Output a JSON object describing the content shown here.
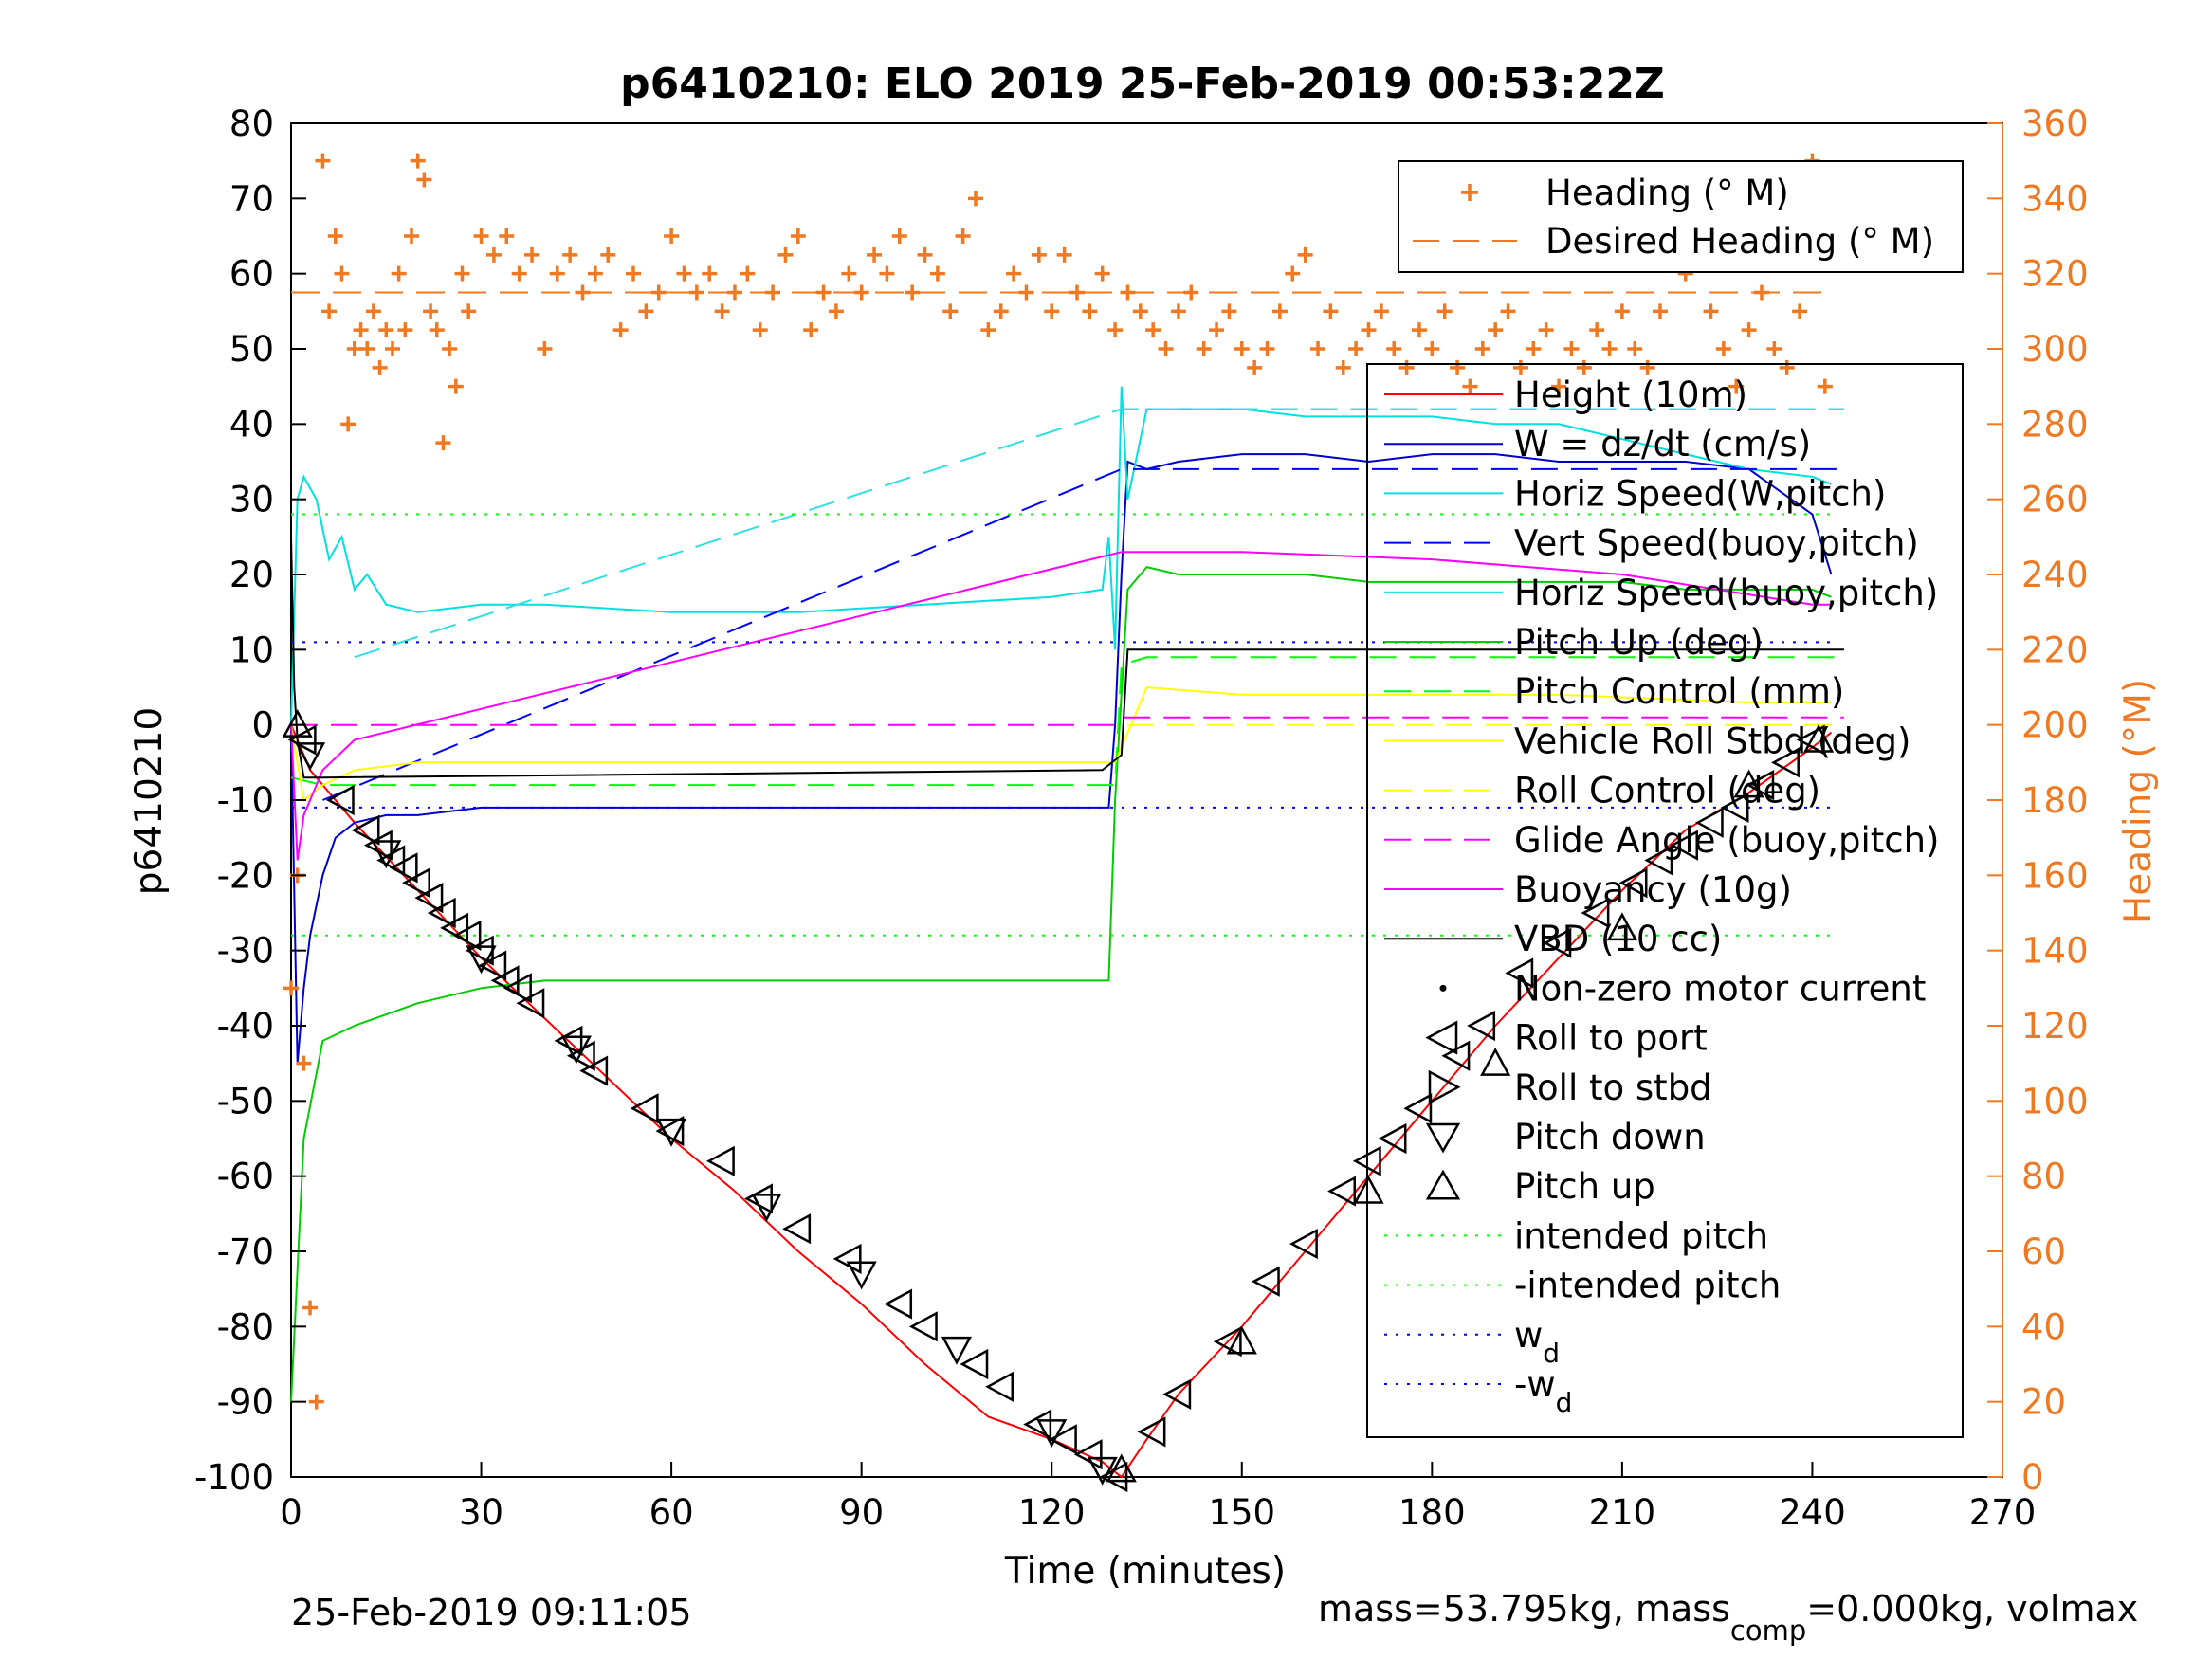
{
  "title": "p6410210: ELO 2019 25-Feb-2019 00:53:22Z",
  "footer_left": "25-Feb-2019 09:11:05",
  "footer_right_parts": [
    "mass=53.795kg, mass",
    "comp",
    "=0.000kg, volmax"
  ],
  "colors": {
    "heading": "#F07820",
    "height": "#FF0000",
    "w": "#0000CC",
    "horiz_w": "#00E0E0",
    "vert_buoy": "#0000FF",
    "horiz_buoy": "#30E0E0",
    "pitch": "#00CC00",
    "pitch_ctrl": "#00FF00",
    "roll": "#FFFF00",
    "glide": "#FF00FF",
    "buoy": "#FF00FF",
    "vbd": "#000000",
    "intended": "#00FF00",
    "wd": "#0000FF"
  },
  "chart_data": {
    "type": "line",
    "title": "p6410210: ELO 2019 25-Feb-2019 00:53:22Z",
    "xlabel": "Time (minutes)",
    "ylabel": "p6410210",
    "y2label": "Heading (°M)",
    "xlim": [
      0,
      270
    ],
    "ylim": [
      -100,
      80
    ],
    "y2lim": [
      0,
      360
    ],
    "xticks": [
      0,
      30,
      60,
      90,
      120,
      150,
      180,
      210,
      240,
      270
    ],
    "yticks": [
      -100,
      -90,
      -80,
      -70,
      -60,
      -50,
      -40,
      -30,
      -20,
      -10,
      0,
      10,
      20,
      30,
      40,
      50,
      60,
      70,
      80
    ],
    "y2ticks": [
      0,
      20,
      40,
      60,
      80,
      100,
      120,
      140,
      160,
      180,
      200,
      220,
      240,
      260,
      280,
      300,
      320,
      340,
      360
    ],
    "legend_top": {
      "placement": "top-right",
      "entries": [
        "Heading (° M)",
        "Desired Heading (° M)"
      ]
    },
    "legend_main": {
      "placement": "right",
      "entries": [
        "Height (10m)",
        "W = dz/dt (cm/s)",
        "Horiz Speed(W,pitch)",
        "Vert Speed(buoy,pitch)",
        "Horiz Speed(buoy,pitch)",
        "Pitch Up (deg)",
        "Pitch Control (mm)",
        "Vehicle Roll Stbd (deg)",
        "Roll Control (deg)",
        "Glide Angle (buoy,pitch)",
        "Buoyancy (10g)",
        "VBD (10 cc)",
        "Non-zero motor current",
        "Roll to port",
        "Roll to stbd",
        "Pitch down",
        "Pitch up",
        "intended pitch",
        "-intended pitch",
        "w",
        "-w"
      ],
      "subscript": "d"
    },
    "series": [
      {
        "name": "Height (10m)",
        "style": "solid",
        "x": [
          0,
          1,
          3,
          10,
          20,
          30,
          40,
          50,
          60,
          70,
          80,
          90,
          100,
          110,
          120,
          128,
          131,
          135,
          140,
          150,
          160,
          170,
          180,
          190,
          200,
          210,
          220,
          230,
          240,
          243
        ],
        "y": [
          0,
          -2,
          -6,
          -13,
          -22,
          -31,
          -39,
          -47,
          -55,
          -62,
          -70,
          -77,
          -85,
          -92,
          -95,
          -98,
          -100,
          -95,
          -89,
          -80,
          -70,
          -60,
          -50,
          -40,
          -31,
          -22,
          -14,
          -9,
          -3,
          -1
        ]
      },
      {
        "name": "W = dz/dt (cm/s)",
        "style": "solid",
        "x": [
          0,
          1,
          2,
          3,
          5,
          7,
          10,
          15,
          20,
          30,
          40,
          60,
          80,
          100,
          120,
          128,
          129,
          130,
          131,
          132,
          135,
          140,
          150,
          160,
          170,
          180,
          190,
          200,
          210,
          220,
          230,
          240,
          243
        ],
        "y": [
          0,
          -45,
          -35,
          -28,
          -20,
          -15,
          -13,
          -12,
          -12,
          -11,
          -11,
          -11,
          -11,
          -11,
          -11,
          -11,
          -11,
          0,
          20,
          35,
          34,
          35,
          36,
          36,
          35,
          36,
          36,
          35,
          35,
          35,
          34,
          28,
          20
        ]
      },
      {
        "name": "Horiz Speed(W,pitch)",
        "style": "solid",
        "x": [
          0,
          1,
          2,
          4,
          6,
          8,
          10,
          12,
          15,
          20,
          30,
          40,
          60,
          80,
          100,
          120,
          128,
          129,
          130,
          131,
          132,
          135,
          140,
          150,
          160,
          170,
          180,
          190,
          200,
          210,
          220,
          230,
          240,
          243
        ],
        "y": [
          0,
          30,
          33,
          30,
          22,
          25,
          18,
          20,
          16,
          15,
          16,
          16,
          15,
          15,
          16,
          17,
          18,
          25,
          10,
          45,
          30,
          42,
          42,
          42,
          41,
          41,
          41,
          40,
          40,
          38,
          36,
          34,
          33,
          32
        ]
      },
      {
        "name": "Vert Speed(buoy,pitch)",
        "style": "dash",
        "x": [
          5,
          131,
          135,
          245
        ],
        "y": [
          -10,
          34,
          34,
          34
        ]
      },
      {
        "name": "Horiz Speed(buoy,pitch)",
        "style": "dash",
        "x": [
          10,
          131,
          245
        ],
        "y": [
          9,
          42,
          42
        ]
      },
      {
        "name": "Pitch Up (deg)",
        "style": "solid",
        "x": [
          0,
          2,
          5,
          10,
          20,
          30,
          40,
          60,
          80,
          100,
          120,
          128,
          129,
          130,
          132,
          135,
          140,
          150,
          160,
          170,
          180,
          190,
          200,
          210,
          220,
          230,
          240,
          243
        ],
        "y": [
          -90,
          -55,
          -42,
          -40,
          -37,
          -35,
          -34,
          -34,
          -34,
          -34,
          -34,
          -34,
          -34,
          -10,
          18,
          21,
          20,
          20,
          20,
          19,
          19,
          19,
          19,
          19,
          18,
          18,
          18,
          17
        ]
      },
      {
        "name": "Pitch Control (mm)",
        "style": "dash",
        "x": [
          0,
          5,
          130,
          131,
          135,
          245
        ],
        "y": [
          -7,
          -8,
          -8,
          8,
          9,
          9
        ]
      },
      {
        "name": "Vehicle Roll Stbd (deg)",
        "style": "solid",
        "x": [
          0,
          2,
          5,
          10,
          20,
          40,
          60,
          80,
          100,
          120,
          130,
          135,
          150,
          170,
          200,
          230,
          243
        ],
        "y": [
          0,
          -10,
          -8,
          -6,
          -5,
          -5,
          -5,
          -5,
          -5,
          -5,
          -5,
          5,
          4,
          4,
          4,
          3,
          3
        ]
      },
      {
        "name": "Roll Control (deg)",
        "style": "dash",
        "x": [
          0,
          243
        ],
        "y": [
          0,
          0
        ]
      },
      {
        "name": "Glide Angle (buoy,pitch)",
        "style": "dash",
        "x": [
          0,
          130,
          131,
          245
        ],
        "y": [
          0,
          0,
          1,
          1
        ]
      },
      {
        "name": "Buoyancy (10g)",
        "style": "solid",
        "x": [
          0,
          1,
          2,
          5,
          10,
          131,
          135,
          150,
          180,
          210,
          240,
          243
        ],
        "y": [
          0,
          -18,
          -12,
          -6,
          -2,
          23,
          23,
          23,
          22,
          20,
          16,
          16
        ]
      },
      {
        "name": "VBD (10 cc)",
        "style": "solid",
        "x": [
          0,
          0.5,
          1,
          2,
          5,
          128,
          131,
          132,
          135,
          245
        ],
        "y": [
          25,
          5,
          -2,
          -7,
          -7,
          -6,
          -4,
          10,
          10,
          10
        ]
      },
      {
        "name": "intended pitch",
        "style": "dot",
        "x": [
          0,
          243
        ],
        "y": [
          28,
          28
        ]
      },
      {
        "name": "-intended pitch",
        "style": "dot",
        "x": [
          0,
          243
        ],
        "y": [
          -28,
          -28
        ]
      },
      {
        "name": "w",
        "style": "dot",
        "x": [
          0,
          243
        ],
        "y": [
          11,
          11
        ]
      },
      {
        "name": "-w",
        "style": "dot",
        "x": [
          0,
          243
        ],
        "y": [
          -11,
          -11
        ]
      }
    ],
    "desired_heading": 315,
    "desired_heading_x": [
      0,
      243
    ],
    "heading": {
      "name": "Heading (° M)",
      "x": [
        0,
        1,
        2,
        3,
        4,
        5,
        6,
        7,
        8,
        9,
        10,
        11,
        12,
        13,
        14,
        15,
        16,
        17,
        18,
        19,
        20,
        21,
        22,
        23,
        24,
        25,
        26,
        27,
        28,
        30,
        32,
        34,
        36,
        38,
        40,
        42,
        44,
        46,
        48,
        50,
        52,
        54,
        56,
        58,
        60,
        62,
        64,
        66,
        68,
        70,
        72,
        74,
        76,
        78,
        80,
        82,
        84,
        86,
        88,
        90,
        92,
        94,
        96,
        98,
        100,
        102,
        104,
        106,
        108,
        110,
        112,
        114,
        116,
        118,
        120,
        122,
        124,
        126,
        128,
        130,
        132,
        134,
        136,
        138,
        140,
        142,
        144,
        146,
        148,
        150,
        152,
        154,
        156,
        158,
        160,
        162,
        164,
        166,
        168,
        170,
        172,
        174,
        176,
        178,
        180,
        182,
        184,
        186,
        188,
        190,
        192,
        194,
        196,
        198,
        200,
        202,
        204,
        206,
        208,
        210,
        212,
        214,
        216,
        218,
        220,
        222,
        224,
        226,
        228,
        230,
        232,
        234,
        236,
        238,
        240,
        242
      ],
      "y": [
        130,
        160,
        110,
        45,
        20,
        350,
        310,
        330,
        320,
        280,
        300,
        305,
        300,
        310,
        295,
        305,
        300,
        320,
        305,
        330,
        350,
        345,
        310,
        305,
        275,
        300,
        290,
        320,
        310,
        330,
        325,
        330,
        320,
        325,
        300,
        320,
        325,
        315,
        320,
        325,
        305,
        320,
        310,
        315,
        330,
        320,
        315,
        320,
        310,
        315,
        320,
        305,
        315,
        325,
        330,
        305,
        315,
        310,
        320,
        315,
        325,
        320,
        330,
        315,
        325,
        320,
        310,
        330,
        340,
        305,
        310,
        320,
        315,
        325,
        310,
        325,
        315,
        310,
        320,
        305,
        315,
        310,
        305,
        300,
        310,
        315,
        300,
        305,
        310,
        300,
        295,
        300,
        310,
        320,
        325,
        300,
        310,
        295,
        300,
        305,
        310,
        300,
        295,
        305,
        300,
        310,
        295,
        290,
        300,
        305,
        310,
        295,
        300,
        305,
        290,
        300,
        295,
        305,
        300,
        310,
        300,
        295,
        310,
        330,
        320,
        335,
        310,
        300,
        290,
        305,
        315,
        300,
        295,
        310,
        350,
        290
      ]
    },
    "markers": {
      "roll_to_port_x": [
        2,
        8,
        12,
        14,
        16,
        18,
        20,
        22,
        24,
        26,
        28,
        30,
        32,
        34,
        36,
        38,
        44,
        46,
        48,
        56,
        60,
        68,
        74,
        80,
        88,
        96,
        100,
        108,
        112,
        118,
        122,
        126,
        130,
        136,
        140,
        148,
        154,
        160,
        166,
        170,
        174,
        178,
        184,
        188,
        194,
        200,
        206,
        212,
        216,
        220,
        224,
        228,
        232,
        236,
        240
      ],
      "roll_to_port_y": [
        -2,
        -10,
        -14,
        -16,
        -18,
        -19,
        -21,
        -23,
        -25,
        -27,
        -28,
        -30,
        -32,
        -34,
        -35,
        -37,
        -42,
        -44,
        -46,
        -51,
        -54,
        -58,
        -63,
        -67,
        -71,
        -77,
        -80,
        -85,
        -88,
        -93,
        -95,
        -97,
        -100,
        -94,
        -89,
        -82,
        -74,
        -69,
        -62,
        -58,
        -55,
        -51,
        -44,
        -40,
        -33,
        -29,
        -25,
        -21,
        -18,
        -16,
        -13,
        -11,
        -8,
        -5,
        -2
      ],
      "pitch_down_x": [
        3,
        15,
        30,
        45,
        60,
        75,
        90,
        105,
        120,
        128
      ],
      "pitch_down_y": [
        -4,
        -17,
        -31,
        -43,
        -54,
        -64,
        -73,
        -83,
        -94,
        -99
      ],
      "pitch_up_x": [
        1,
        131,
        150,
        170,
        190,
        210,
        230,
        241
      ],
      "pitch_up_y": [
        0,
        -99,
        -82,
        -62,
        -45,
        -27,
        -8,
        -2
      ]
    }
  }
}
